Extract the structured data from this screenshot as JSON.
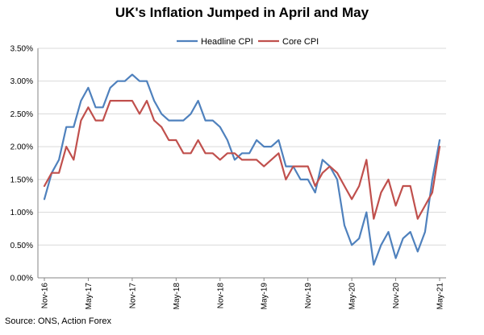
{
  "chart_data": {
    "type": "line",
    "title": "UK's Inflation Jumped in April and May",
    "source": "Source: ONS, Action Forex",
    "xlabel": "",
    "ylabel": "",
    "ylim": [
      0,
      3.5
    ],
    "y_ticks": [
      "0.00%",
      "0.50%",
      "1.00%",
      "1.50%",
      "2.00%",
      "2.50%",
      "3.00%",
      "3.50%"
    ],
    "y_tick_values": [
      0,
      0.5,
      1,
      1.5,
      2,
      2.5,
      3,
      3.5
    ],
    "x": [
      "Nov-16",
      "Dec-16",
      "Jan-17",
      "Feb-17",
      "Mar-17",
      "Apr-17",
      "May-17",
      "Jun-17",
      "Jul-17",
      "Aug-17",
      "Sep-17",
      "Oct-17",
      "Nov-17",
      "Dec-17",
      "Jan-18",
      "Feb-18",
      "Mar-18",
      "Apr-18",
      "May-18",
      "Jun-18",
      "Jul-18",
      "Aug-18",
      "Sep-18",
      "Oct-18",
      "Nov-18",
      "Dec-18",
      "Jan-19",
      "Feb-19",
      "Mar-19",
      "Apr-19",
      "May-19",
      "Jun-19",
      "Jul-19",
      "Aug-19",
      "Sep-19",
      "Oct-19",
      "Nov-19",
      "Dec-19",
      "Jan-20",
      "Feb-20",
      "Mar-20",
      "Apr-20",
      "May-20",
      "Jun-20",
      "Jul-20",
      "Aug-20",
      "Sep-20",
      "Oct-20",
      "Nov-20",
      "Dec-20",
      "Jan-21",
      "Feb-21",
      "Mar-21",
      "Apr-21",
      "May-21"
    ],
    "x_tick_labels": [
      "Nov-16",
      "May-17",
      "Nov-17",
      "May-18",
      "Nov-18",
      "May-19",
      "Nov-19",
      "May-20",
      "Nov-20",
      "May-21"
    ],
    "grid": "horizontal",
    "legend_position": "top-center",
    "series": [
      {
        "name": "Headline CPI",
        "color": "#4F81BD",
        "values": [
          1.2,
          1.6,
          1.8,
          2.3,
          2.3,
          2.7,
          2.9,
          2.6,
          2.6,
          2.9,
          3.0,
          3.0,
          3.1,
          3.0,
          3.0,
          2.7,
          2.5,
          2.4,
          2.4,
          2.4,
          2.5,
          2.7,
          2.4,
          2.4,
          2.3,
          2.1,
          1.8,
          1.9,
          1.9,
          2.1,
          2.0,
          2.0,
          2.1,
          1.7,
          1.7,
          1.5,
          1.5,
          1.3,
          1.8,
          1.7,
          1.5,
          0.8,
          0.5,
          0.6,
          1.0,
          0.2,
          0.5,
          0.7,
          0.3,
          0.6,
          0.7,
          0.4,
          0.7,
          1.5,
          2.1
        ]
      },
      {
        "name": "Core CPI",
        "color": "#C0504D",
        "values": [
          1.4,
          1.6,
          1.6,
          2.0,
          1.8,
          2.4,
          2.6,
          2.4,
          2.4,
          2.7,
          2.7,
          2.7,
          2.7,
          2.5,
          2.7,
          2.4,
          2.3,
          2.1,
          2.1,
          1.9,
          1.9,
          2.1,
          1.9,
          1.9,
          1.8,
          1.9,
          1.9,
          1.8,
          1.8,
          1.8,
          1.7,
          1.8,
          1.9,
          1.5,
          1.7,
          1.7,
          1.7,
          1.4,
          1.6,
          1.7,
          1.6,
          1.4,
          1.2,
          1.4,
          1.8,
          0.9,
          1.3,
          1.5,
          1.1,
          1.4,
          1.4,
          0.9,
          1.1,
          1.3,
          2.0
        ]
      }
    ]
  }
}
